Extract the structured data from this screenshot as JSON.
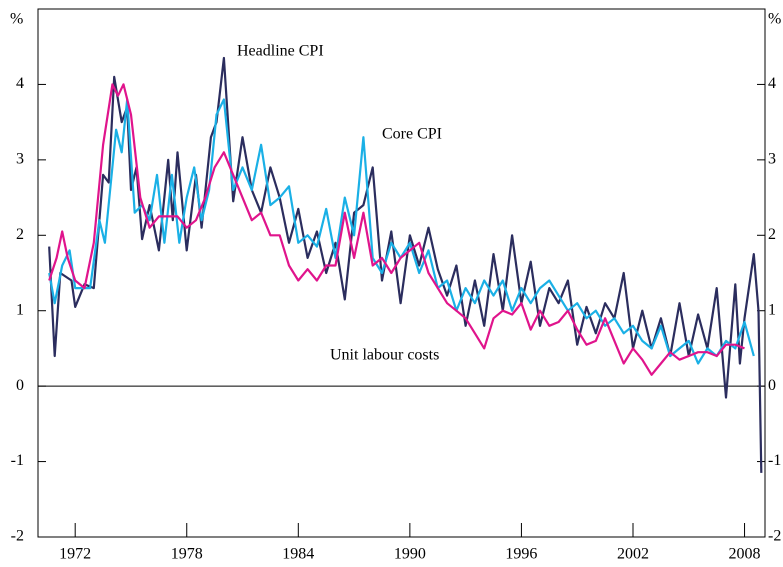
{
  "chart_data": {
    "type": "line",
    "unit": "%",
    "xlim": [
      1970,
      2009.1
    ],
    "xticks": [
      1972,
      1978,
      1984,
      1990,
      1996,
      2002,
      2008
    ],
    "ylim": [
      -2,
      5
    ],
    "yticks": [
      -2,
      -1,
      0,
      1,
      2,
      3,
      4
    ],
    "series": [
      {
        "name": "Headline CPI",
        "color": "#2b2d5e",
        "x": [
          1970.6,
          1970.9,
          1971.2,
          1971.8,
          1972.0,
          1972.5,
          1973.0,
          1973.5,
          1973.8,
          1974.1,
          1974.5,
          1974.8,
          1975.0,
          1975.3,
          1975.6,
          1976.0,
          1976.5,
          1977.0,
          1977.25,
          1977.5,
          1978.0,
          1978.5,
          1978.8,
          1979.3,
          1979.6,
          1980.0,
          1980.5,
          1981.0,
          1981.5,
          1982.0,
          1982.5,
          1983.0,
          1983.5,
          1984.0,
          1984.5,
          1985.0,
          1985.5,
          1986.0,
          1986.5,
          1987.0,
          1987.5,
          1988.0,
          1988.5,
          1989.0,
          1989.5,
          1990.0,
          1990.5,
          1991.0,
          1991.5,
          1992.0,
          1992.5,
          1993.0,
          1993.5,
          1994.0,
          1994.5,
          1995.0,
          1995.5,
          1996.0,
          1996.5,
          1997.0,
          1997.5,
          1998.0,
          1998.5,
          1999.0,
          1999.5,
          2000.0,
          2000.5,
          2001.0,
          2001.5,
          2002.0,
          2002.5,
          2003.0,
          2003.5,
          2004.0,
          2004.5,
          2005.0,
          2005.5,
          2006.0,
          2006.5,
          2007.0,
          2007.5,
          2007.75,
          2008.0,
          2008.5,
          2008.75,
          2008.9
        ],
        "values": [
          1.85,
          0.4,
          1.5,
          1.4,
          1.05,
          1.35,
          1.3,
          2.8,
          2.7,
          4.1,
          3.5,
          3.7,
          2.6,
          2.9,
          1.95,
          2.4,
          1.8,
          3.0,
          2.2,
          3.1,
          1.8,
          2.8,
          2.1,
          3.3,
          3.5,
          4.35,
          2.45,
          3.3,
          2.6,
          2.3,
          2.9,
          2.5,
          1.9,
          2.35,
          1.7,
          2.05,
          1.5,
          1.9,
          1.15,
          2.3,
          2.4,
          2.9,
          1.4,
          2.05,
          1.1,
          2.0,
          1.6,
          2.1,
          1.55,
          1.2,
          1.6,
          0.8,
          1.4,
          0.8,
          1.75,
          1.0,
          2.0,
          1.1,
          1.65,
          0.8,
          1.3,
          1.1,
          1.4,
          0.55,
          1.05,
          0.7,
          1.1,
          0.9,
          1.5,
          0.5,
          1.0,
          0.5,
          0.9,
          0.4,
          1.1,
          0.4,
          0.95,
          0.5,
          1.3,
          -0.15,
          1.35,
          0.3,
          0.9,
          1.75,
          1.0,
          -1.15
        ]
      },
      {
        "name": "Core CPI",
        "color": "#1ab0e6",
        "x": [
          1970.6,
          1970.9,
          1971.3,
          1971.7,
          1972.0,
          1972.8,
          1973.3,
          1973.6,
          1974.2,
          1974.5,
          1974.8,
          1975.2,
          1975.6,
          1976.0,
          1976.4,
          1976.8,
          1977.2,
          1977.6,
          1978.0,
          1978.4,
          1978.8,
          1979.2,
          1979.6,
          1980.0,
          1980.5,
          1981.0,
          1981.5,
          1982.0,
          1982.5,
          1983.0,
          1983.5,
          1984.0,
          1984.5,
          1985.0,
          1985.5,
          1986.0,
          1986.5,
          1987.0,
          1987.5,
          1988.0,
          1988.5,
          1989.0,
          1989.5,
          1990.0,
          1990.5,
          1991.0,
          1991.5,
          1992.0,
          1992.5,
          1993.0,
          1993.5,
          1994.0,
          1994.5,
          1995.0,
          1995.5,
          1996.0,
          1996.5,
          1997.0,
          1997.5,
          1998.0,
          1998.5,
          1999.0,
          1999.5,
          2000.0,
          2000.5,
          2001.0,
          2001.5,
          2002.0,
          2002.5,
          2003.0,
          2003.5,
          2004.0,
          2004.5,
          2005.0,
          2005.5,
          2006.0,
          2006.5,
          2007.0,
          2007.5,
          2008.0,
          2008.5
        ],
        "values": [
          1.5,
          1.1,
          1.6,
          1.8,
          1.3,
          1.3,
          2.2,
          1.9,
          3.4,
          3.1,
          3.8,
          2.3,
          2.4,
          2.2,
          2.8,
          1.9,
          2.8,
          1.9,
          2.5,
          2.9,
          2.2,
          2.6,
          3.6,
          3.8,
          2.6,
          2.9,
          2.6,
          3.2,
          2.4,
          2.5,
          2.65,
          1.9,
          2.0,
          1.85,
          2.35,
          1.7,
          2.5,
          2.0,
          3.3,
          1.7,
          1.5,
          1.9,
          1.7,
          1.9,
          1.5,
          1.8,
          1.3,
          1.4,
          1.0,
          1.3,
          1.1,
          1.4,
          1.2,
          1.4,
          1.0,
          1.3,
          1.1,
          1.3,
          1.4,
          1.2,
          1.0,
          1.1,
          0.9,
          1.0,
          0.8,
          0.9,
          0.7,
          0.8,
          0.6,
          0.5,
          0.8,
          0.4,
          0.5,
          0.6,
          0.3,
          0.5,
          0.4,
          0.6,
          0.5,
          0.85,
          0.4
        ]
      },
      {
        "name": "Unit labour costs",
        "color": "#e0148c",
        "x": [
          1970.6,
          1971.0,
          1971.3,
          1971.6,
          1972.0,
          1972.5,
          1973.0,
          1973.5,
          1974.0,
          1974.3,
          1974.6,
          1975.0,
          1975.5,
          1976.0,
          1976.5,
          1977.0,
          1977.5,
          1978.0,
          1978.5,
          1979.0,
          1979.5,
          1980.0,
          1980.5,
          1981.0,
          1981.5,
          1982.0,
          1982.5,
          1983.0,
          1983.5,
          1984.0,
          1984.5,
          1985.0,
          1985.5,
          1986.0,
          1986.5,
          1987.0,
          1987.5,
          1988.0,
          1988.5,
          1989.0,
          1989.5,
          1990.0,
          1990.5,
          1991.0,
          1991.5,
          1992.0,
          1992.5,
          1993.0,
          1993.5,
          1994.0,
          1994.5,
          1995.0,
          1995.5,
          1996.0,
          1996.5,
          1997.0,
          1997.5,
          1998.0,
          1998.5,
          1999.0,
          1999.5,
          2000.0,
          2000.5,
          2001.0,
          2001.5,
          2002.0,
          2002.5,
          2003.0,
          2003.5,
          2004.0,
          2004.5,
          2005.0,
          2005.5,
          2006.0,
          2006.5,
          2007.0,
          2007.5,
          2008.0
        ],
        "values": [
          1.4,
          1.7,
          2.05,
          1.7,
          1.4,
          1.3,
          1.9,
          3.2,
          4.0,
          3.85,
          4.0,
          3.6,
          2.5,
          2.1,
          2.25,
          2.25,
          2.25,
          2.1,
          2.2,
          2.5,
          2.9,
          3.1,
          2.8,
          2.5,
          2.2,
          2.3,
          2.0,
          2.0,
          1.6,
          1.4,
          1.55,
          1.4,
          1.6,
          1.6,
          2.3,
          1.7,
          2.3,
          1.6,
          1.7,
          1.5,
          1.7,
          1.8,
          1.9,
          1.5,
          1.3,
          1.1,
          1.0,
          0.9,
          0.7,
          0.5,
          0.9,
          1.0,
          0.95,
          1.1,
          0.75,
          1.0,
          0.8,
          0.85,
          1.0,
          0.75,
          0.55,
          0.6,
          0.9,
          0.6,
          0.3,
          0.5,
          0.35,
          0.15,
          0.3,
          0.45,
          0.35,
          0.4,
          0.45,
          0.45,
          0.4,
          0.55,
          0.55,
          0.5
        ]
      }
    ]
  }
}
